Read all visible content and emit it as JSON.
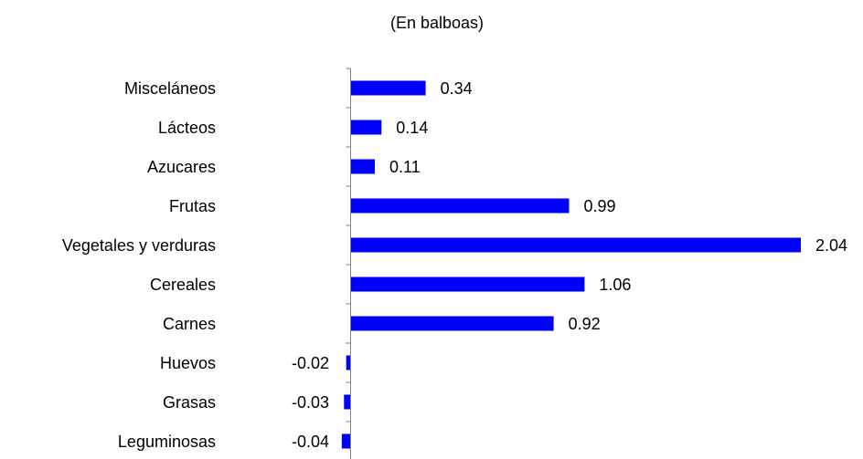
{
  "chart_data": {
    "type": "bar",
    "orientation": "horizontal",
    "subtitle": "(En balboas)",
    "categories": [
      "Misceláneos",
      "Lácteos",
      "Azucares",
      "Frutas",
      "Vegetales y verduras",
      "Cereales",
      "Carnes",
      "Huevos",
      "Grasas",
      "Leguminosas"
    ],
    "values": [
      0.34,
      0.14,
      0.11,
      0.99,
      2.04,
      1.06,
      0.92,
      -0.02,
      -0.03,
      -0.04
    ],
    "value_labels": [
      "0.34",
      "0.14",
      "0.11",
      "0.99",
      "2.04",
      "1.06",
      "0.92",
      "-0.02",
      "-0.03",
      "-0.04"
    ],
    "bar_color": "#0000ff",
    "legend": "none",
    "grid": false
  }
}
